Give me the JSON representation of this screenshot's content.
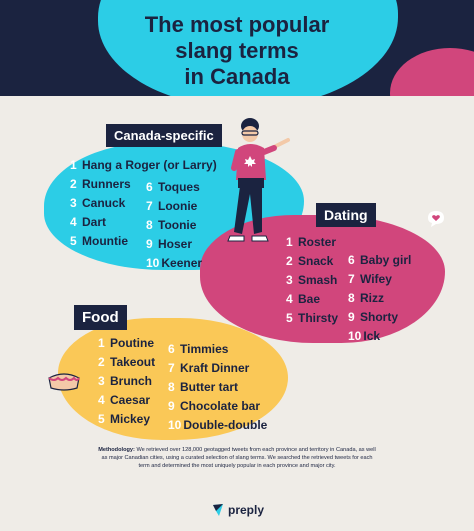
{
  "title": {
    "line1": "The most popular",
    "line2": "slang terms",
    "line3": "in Canada"
  },
  "canada": {
    "label": "Canada-specific",
    "left": [
      {
        "n": "1",
        "t": "Hang a Roger (or Larry)"
      },
      {
        "n": "2",
        "t": "Runners"
      },
      {
        "n": "3",
        "t": "Canuck"
      },
      {
        "n": "4",
        "t": "Dart"
      },
      {
        "n": "5",
        "t": "Mountie"
      }
    ],
    "right": [
      {
        "n": "6",
        "t": "Toques"
      },
      {
        "n": "7",
        "t": "Loonie"
      },
      {
        "n": "8",
        "t": "Toonie"
      },
      {
        "n": "9",
        "t": "Hoser"
      },
      {
        "n": "10",
        "t": "Keener"
      }
    ]
  },
  "dating": {
    "label": "Dating",
    "left": [
      {
        "n": "1",
        "t": "Roster"
      },
      {
        "n": "2",
        "t": "Snack"
      },
      {
        "n": "3",
        "t": "Smash"
      },
      {
        "n": "4",
        "t": "Bae"
      },
      {
        "n": "5",
        "t": "Thirsty"
      }
    ],
    "right": [
      {
        "n": "6",
        "t": "Baby girl"
      },
      {
        "n": "7",
        "t": "Wifey"
      },
      {
        "n": "8",
        "t": "Rizz"
      },
      {
        "n": "9",
        "t": "Shorty"
      },
      {
        "n": "10",
        "t": "Ick"
      }
    ]
  },
  "food": {
    "label": "Food",
    "left": [
      {
        "n": "1",
        "t": "Poutine"
      },
      {
        "n": "2",
        "t": "Takeout"
      },
      {
        "n": "3",
        "t": "Brunch"
      },
      {
        "n": "4",
        "t": "Caesar"
      },
      {
        "n": "5",
        "t": "Mickey"
      }
    ],
    "right": [
      {
        "n": "6",
        "t": "Timmies"
      },
      {
        "n": "7",
        "t": "Kraft Dinner"
      },
      {
        "n": "8",
        "t": "Butter tart"
      },
      {
        "n": "9",
        "t": "Chocolate bar"
      },
      {
        "n": "10",
        "t": "Double-double"
      }
    ]
  },
  "methodology": {
    "label": "Methodology:",
    "text": "We retrieved over 128,000 geotagged tweets from each province and territory in Canada, as well as major Canadian cities, using a curated selection of slang terms. We searched the retrieved tweets for each term and determined the most uniquely popular in each province and major city."
  },
  "brand": "preply",
  "colors": {
    "navy": "#1b2340",
    "cyan": "#2ccde6",
    "pink": "#d1467c",
    "yellow": "#fac857",
    "background": "#efece7"
  }
}
